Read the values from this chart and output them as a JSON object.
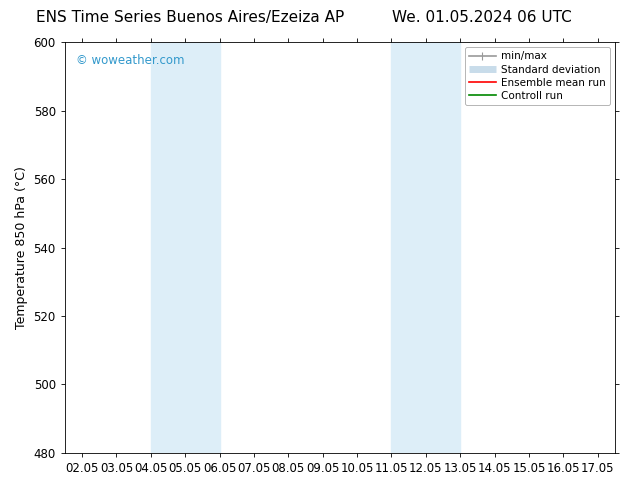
{
  "title_left": "ENS Time Series Buenos Aires/Ezeiza AP",
  "title_right": "We. 01.05.2024 06 UTC",
  "ylabel": "Temperature 850 hPa (°C)",
  "ylim": [
    480,
    600
  ],
  "yticks": [
    480,
    500,
    520,
    540,
    560,
    580,
    600
  ],
  "xlim": [
    1.5,
    17.5
  ],
  "xtick_labels": [
    "02.05",
    "03.05",
    "04.05",
    "05.05",
    "06.05",
    "07.05",
    "08.05",
    "09.05",
    "10.05",
    "11.05",
    "12.05",
    "13.05",
    "14.05",
    "15.05",
    "16.05",
    "17.05"
  ],
  "xtick_positions": [
    2,
    3,
    4,
    5,
    6,
    7,
    8,
    9,
    10,
    11,
    12,
    13,
    14,
    15,
    16,
    17
  ],
  "shaded_bands": [
    {
      "xmin": 4.0,
      "xmax": 6.0,
      "color": "#ddeef8"
    },
    {
      "xmin": 11.0,
      "xmax": 13.0,
      "color": "#ddeef8"
    }
  ],
  "watermark": "© woweather.com",
  "watermark_color": "#3399cc",
  "background_color": "#ffffff",
  "plot_bg_color": "#ffffff",
  "legend_items": [
    {
      "label": "min/max",
      "color": "#999999",
      "lw": 1.2
    },
    {
      "label": "Standard deviation",
      "color": "#c8dcea",
      "lw": 5
    },
    {
      "label": "Ensemble mean run",
      "color": "#ff0000",
      "lw": 1.2
    },
    {
      "label": "Controll run",
      "color": "#008800",
      "lw": 1.2
    }
  ],
  "title_fontsize": 11,
  "tick_fontsize": 8.5,
  "ylabel_fontsize": 9
}
